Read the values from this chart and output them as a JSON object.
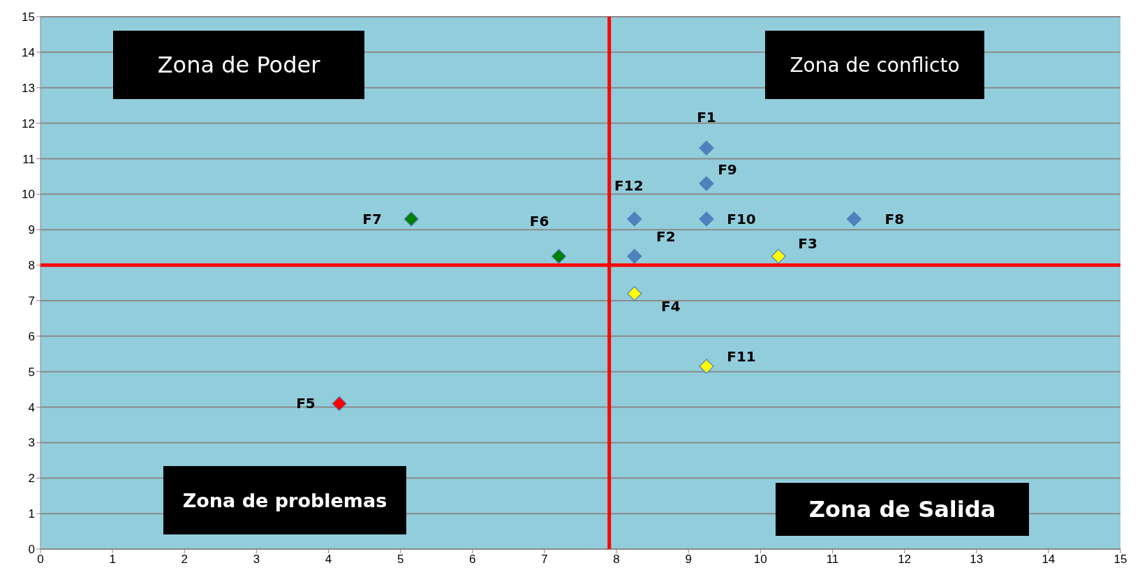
{
  "chart_data": {
    "type": "scatter",
    "x": [
      9.25,
      8.25,
      10.25,
      8.25,
      4.15,
      7.2,
      5.15,
      11.3,
      9.25,
      9.25,
      9.25,
      8.25
    ],
    "series": [
      {
        "values": [
          11.3,
          8.25,
          8.25,
          7.2,
          4.1,
          8.25,
          9.3,
          9.3,
          10.3,
          9.3,
          5.15,
          9.3
        ],
        "colors": [
          "#4f81bd",
          "#4f81bd",
          "#ffff00",
          "#ffff00",
          "#ff0000",
          "#008000",
          "#008000",
          "#4f81bd",
          "#4f81bd",
          "#4f81bd",
          "#ffff00",
          "#4f81bd"
        ]
      }
    ],
    "marker": "diamond",
    "xlim": [
      0,
      15
    ],
    "ylim": [
      0,
      15
    ],
    "xticks": [
      0,
      1,
      2,
      3,
      4,
      5,
      6,
      7,
      8,
      9,
      10,
      11,
      12,
      13,
      14,
      15
    ],
    "yticks": [
      0,
      1,
      2,
      3,
      4,
      5,
      6,
      7,
      8,
      9,
      10,
      11,
      12,
      13,
      14,
      15
    ],
    "grid": "y",
    "legend": false,
    "ref_lines": [
      {
        "axis": "x",
        "value": 7.9,
        "color": "#ff0000"
      },
      {
        "axis": "y",
        "value": 8,
        "color": "#ff0000"
      }
    ],
    "annotations": [
      "Zona de Poder",
      "Zona de conflicto",
      "Zona de problemas",
      "Zona de Salida",
      {
        "text": "F1",
        "x": 9.25,
        "y": 11.3
      },
      {
        "text": "F2",
        "x": 8.25,
        "y": 8.25
      },
      {
        "text": "F3",
        "x": 10.25,
        "y": 8.25
      },
      {
        "text": "F4",
        "x": 8.25,
        "y": 7.2
      },
      {
        "text": "F5",
        "x": 4.15,
        "y": 4.1
      },
      {
        "text": "F6",
        "x": 7.2,
        "y": 8.25
      },
      {
        "text": "F7",
        "x": 5.15,
        "y": 9.3
      },
      {
        "text": "F8",
        "x": 11.3,
        "y": 9.3
      },
      {
        "text": "F9",
        "x": 9.25,
        "y": 10.3
      },
      {
        "text": "F10",
        "x": 9.25,
        "y": 9.3
      },
      {
        "text": "F11",
        "x": 9.25,
        "y": 5.15
      },
      {
        "text": "F12",
        "x": 8.25,
        "y": 9.3
      }
    ]
  }
}
